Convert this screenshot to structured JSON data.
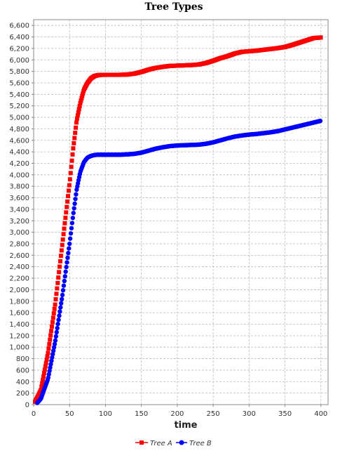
{
  "chart_data": {
    "type": "scatter",
    "title": "Tree Types",
    "xlabel": "time",
    "ylabel": "",
    "xlim": [
      0,
      410
    ],
    "ylim": [
      0,
      6700
    ],
    "x_ticks": [
      0,
      50,
      100,
      150,
      200,
      250,
      300,
      350,
      400
    ],
    "y_ticks": [
      0,
      200,
      400,
      600,
      800,
      1000,
      1200,
      1400,
      1600,
      1800,
      2000,
      2200,
      2400,
      2600,
      2800,
      3000,
      3200,
      3400,
      3600,
      3800,
      4000,
      4200,
      4400,
      4600,
      4800,
      5000,
      5200,
      5400,
      5600,
      5800,
      6000,
      6200,
      6400,
      6600
    ],
    "grid": true,
    "legend_position": "bottom-center",
    "series": [
      {
        "name": "Tree A",
        "color": "#ff0000",
        "marker": "square",
        "x": [
          2,
          10,
          20,
          30,
          40,
          50,
          55,
          60,
          65,
          70,
          75,
          80,
          85,
          90,
          95,
          100,
          110,
          120,
          130,
          140,
          150,
          160,
          170,
          180,
          190,
          200,
          210,
          220,
          230,
          240,
          250,
          260,
          270,
          280,
          290,
          300,
          310,
          320,
          330,
          340,
          350,
          360,
          370,
          380,
          390,
          400
        ],
        "y": [
          50,
          250,
          900,
          1750,
          2800,
          3850,
          4450,
          4950,
          5250,
          5480,
          5600,
          5680,
          5720,
          5735,
          5740,
          5740,
          5740,
          5740,
          5745,
          5760,
          5790,
          5830,
          5860,
          5880,
          5895,
          5900,
          5905,
          5910,
          5920,
          5945,
          5985,
          6030,
          6065,
          6110,
          6140,
          6150,
          6160,
          6175,
          6190,
          6205,
          6225,
          6260,
          6300,
          6340,
          6380,
          6390
        ]
      },
      {
        "name": "Tree B",
        "color": "#0000ff",
        "marker": "circle",
        "x": [
          5,
          10,
          20,
          30,
          40,
          50,
          55,
          60,
          65,
          70,
          75,
          80,
          85,
          90,
          95,
          100,
          110,
          120,
          130,
          140,
          150,
          160,
          170,
          180,
          190,
          200,
          210,
          220,
          230,
          240,
          250,
          260,
          270,
          280,
          290,
          300,
          310,
          320,
          330,
          340,
          350,
          360,
          370,
          380,
          390,
          400
        ],
        "y": [
          30,
          100,
          450,
          1100,
          1900,
          2800,
          3300,
          3750,
          4050,
          4220,
          4300,
          4330,
          4345,
          4350,
          4350,
          4350,
          4350,
          4350,
          4355,
          4365,
          4385,
          4420,
          4455,
          4480,
          4500,
          4510,
          4515,
          4520,
          4525,
          4540,
          4565,
          4600,
          4635,
          4665,
          4685,
          4700,
          4710,
          4725,
          4740,
          4760,
          4790,
          4820,
          4850,
          4880,
          4910,
          4940
        ]
      }
    ]
  }
}
